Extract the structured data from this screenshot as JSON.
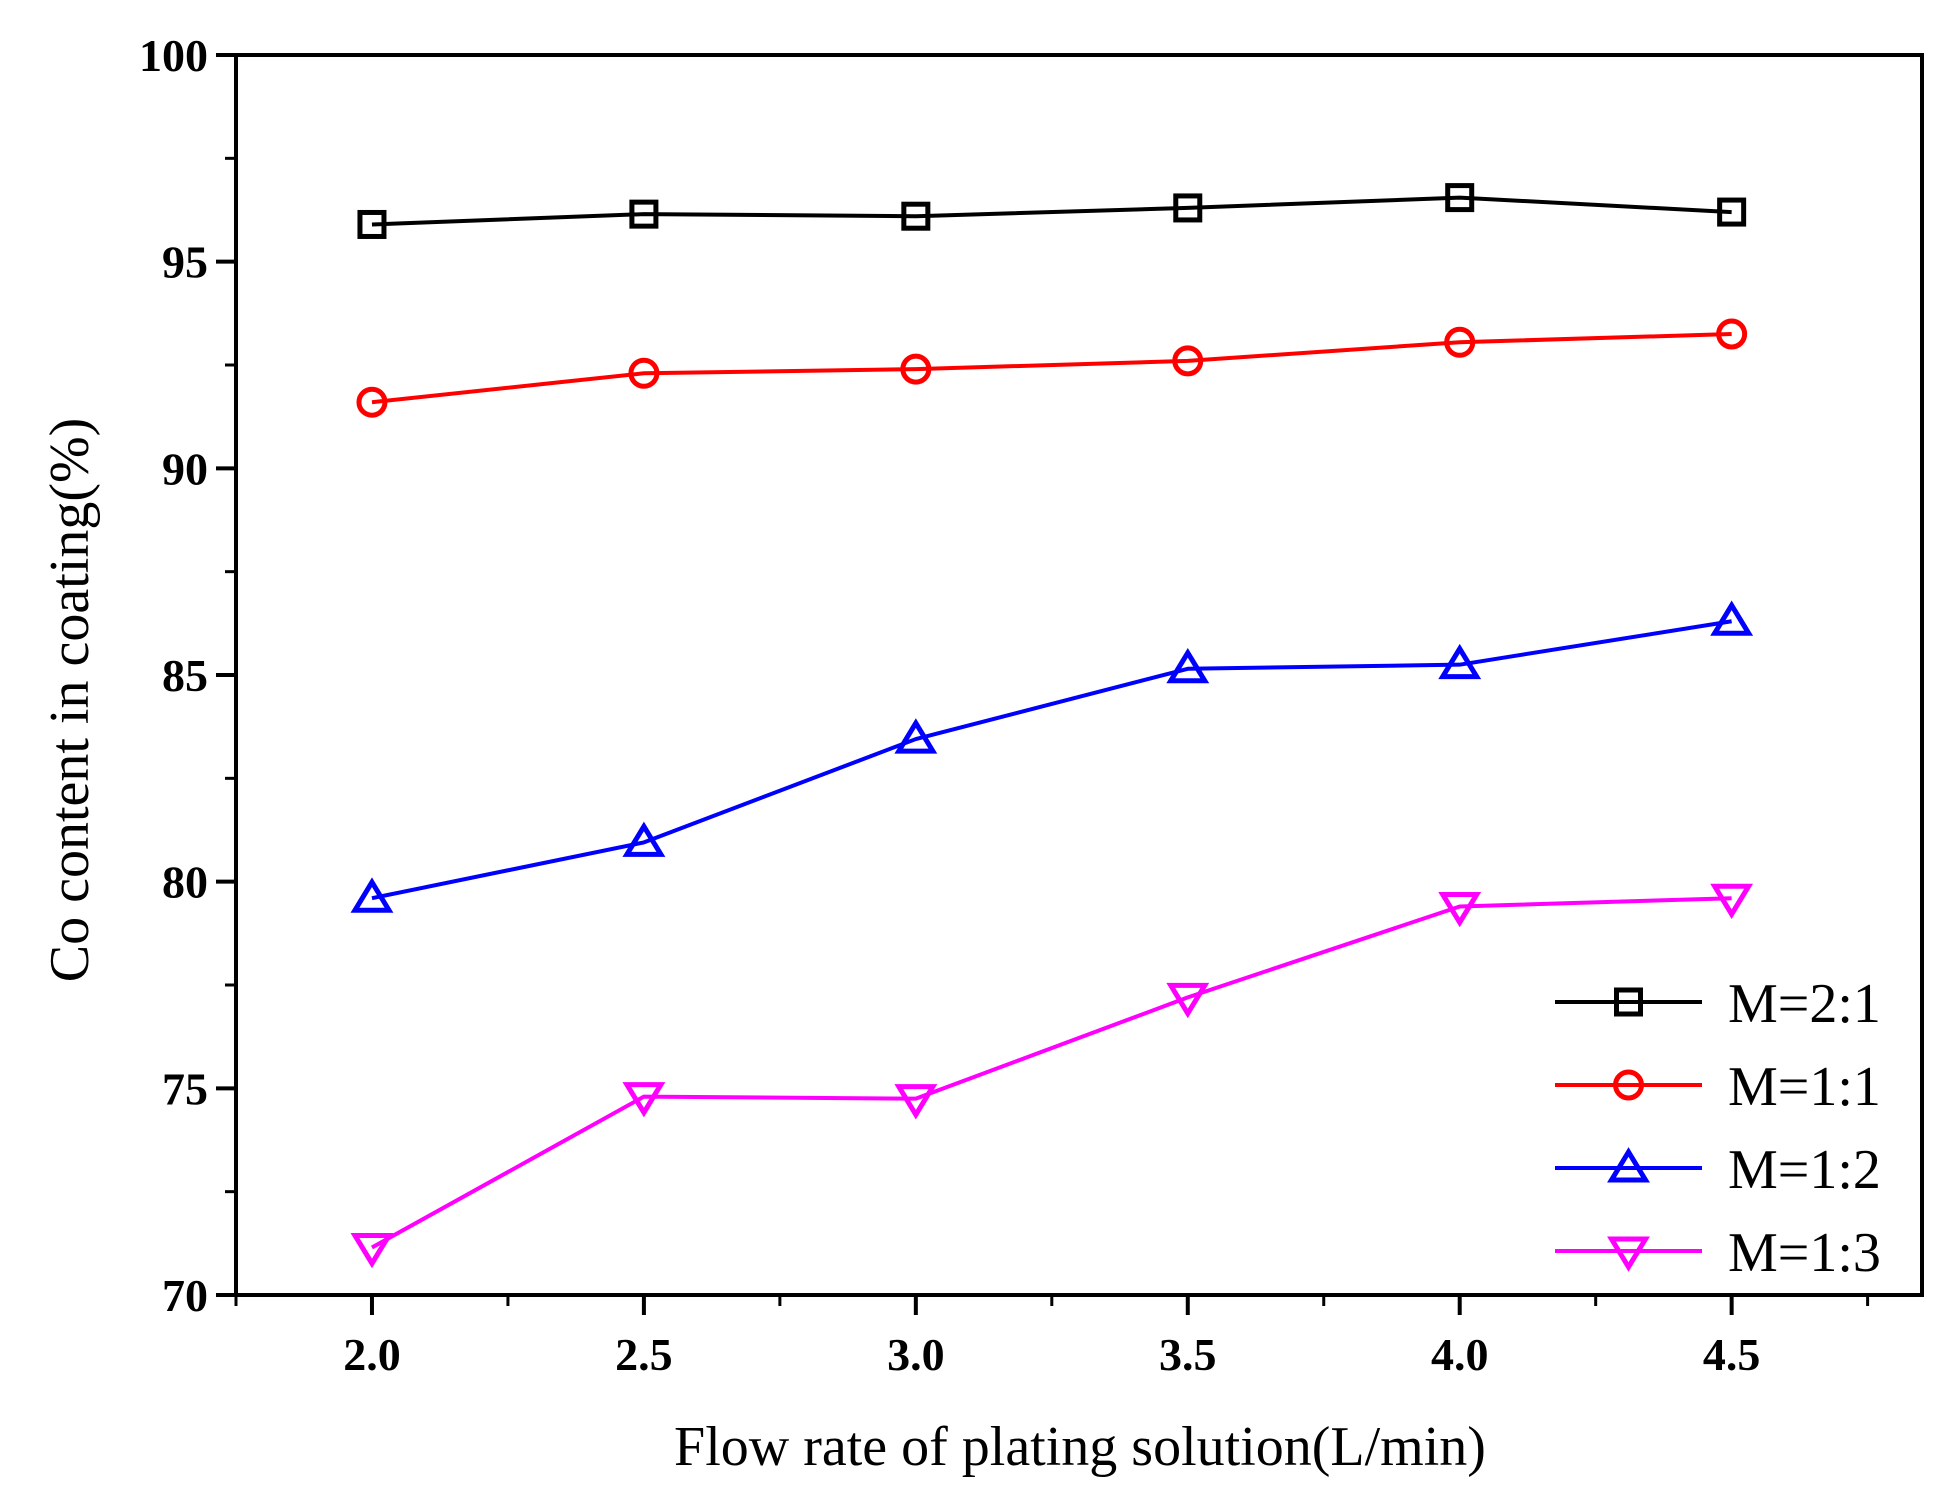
{
  "chart_data": {
    "type": "line",
    "title": "",
    "xlabel": "Flow rate of plating solution(L/min)",
    "ylabel": "Co content in coating(%)",
    "xlim": [
      1.75,
      4.85
    ],
    "ylim": [
      70,
      100
    ],
    "x": [
      2.0,
      2.5,
      3.0,
      3.5,
      4.0,
      4.5
    ],
    "x_tick_labels": [
      "2.0",
      "2.5",
      "3.0",
      "3.5",
      "4.0",
      "4.5"
    ],
    "y_ticks": [
      70,
      75,
      80,
      85,
      90,
      95,
      100
    ],
    "y_tick_labels": [
      "70",
      "75",
      "80",
      "85",
      "90",
      "95",
      "100"
    ],
    "legend_position": "bottom-right",
    "series": [
      {
        "name": "M=2:1",
        "color": "#000000",
        "marker": "square",
        "values": [
          95.9,
          96.15,
          96.1,
          96.3,
          96.55,
          96.2
        ]
      },
      {
        "name": "M=1:1",
        "color": "#ff0000",
        "marker": "circle",
        "values": [
          91.6,
          92.3,
          92.4,
          92.6,
          93.05,
          93.25
        ]
      },
      {
        "name": "M=1:2",
        "color": "#0000ff",
        "marker": "triangle-up",
        "values": [
          79.6,
          80.95,
          83.45,
          85.15,
          85.25,
          86.3
        ]
      },
      {
        "name": "M=1:3",
        "color": "#ff00ff",
        "marker": "triangle-down",
        "values": [
          71.15,
          74.8,
          74.75,
          77.2,
          79.4,
          79.6
        ]
      }
    ]
  }
}
